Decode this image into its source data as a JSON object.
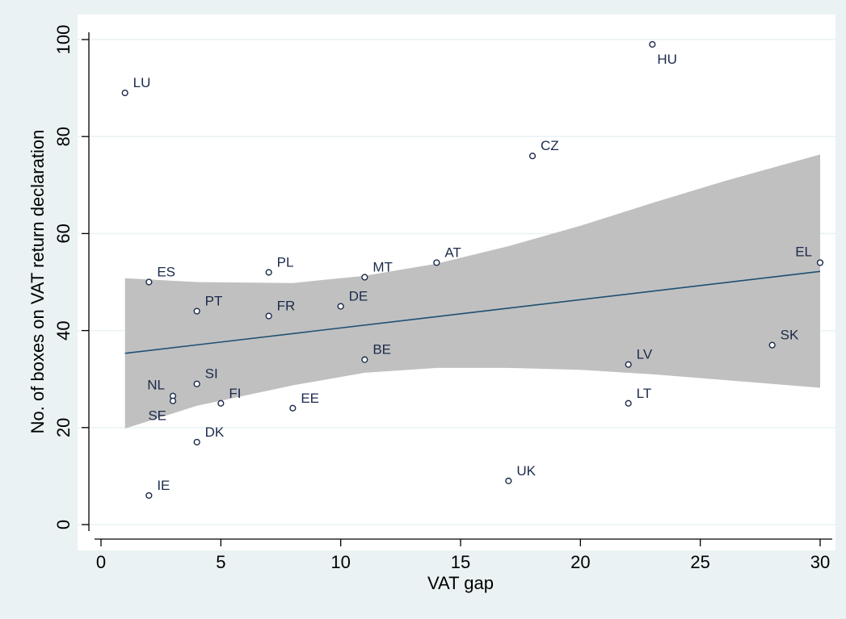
{
  "chart_data": {
    "type": "scatter",
    "title": "",
    "xlabel": "VAT gap",
    "ylabel": "No. of boxes on VAT return declaration",
    "xlim": [
      0,
      30
    ],
    "ylim": [
      0,
      100
    ],
    "x_ticks": [
      "0",
      "5",
      "10",
      "15",
      "20",
      "25",
      "30"
    ],
    "y_ticks": [
      "0",
      "20",
      "40",
      "60",
      "80",
      "100"
    ],
    "grid": "horizontal",
    "legend": "none",
    "points": [
      {
        "label": "LU",
        "x": 1,
        "y": 89,
        "label_pos": "right"
      },
      {
        "label": "HU",
        "x": 23,
        "y": 99,
        "label_pos": "below-right"
      },
      {
        "label": "CZ",
        "x": 18,
        "y": 76,
        "label_pos": "right"
      },
      {
        "label": "ES",
        "x": 2,
        "y": 50,
        "label_pos": "right"
      },
      {
        "label": "PL",
        "x": 7,
        "y": 52,
        "label_pos": "right"
      },
      {
        "label": "MT",
        "x": 11,
        "y": 51,
        "label_pos": "right"
      },
      {
        "label": "AT",
        "x": 14,
        "y": 54,
        "label_pos": "right"
      },
      {
        "label": "EL",
        "x": 30,
        "y": 54,
        "label_pos": "left"
      },
      {
        "label": "PT",
        "x": 4,
        "y": 44,
        "label_pos": "right"
      },
      {
        "label": "FR",
        "x": 7,
        "y": 43,
        "label_pos": "right"
      },
      {
        "label": "DE",
        "x": 10,
        "y": 45,
        "label_pos": "right"
      },
      {
        "label": "SK",
        "x": 28,
        "y": 37,
        "label_pos": "right"
      },
      {
        "label": "BE",
        "x": 11,
        "y": 34,
        "label_pos": "right"
      },
      {
        "label": "LV",
        "x": 22,
        "y": 33,
        "label_pos": "right"
      },
      {
        "label": "SI",
        "x": 4,
        "y": 29,
        "label_pos": "right"
      },
      {
        "label": "NL",
        "x": 3,
        "y": 26.5,
        "label_pos": "left"
      },
      {
        "label": "SE",
        "x": 3,
        "y": 25.5,
        "label_pos": "below-left"
      },
      {
        "label": "FI",
        "x": 5,
        "y": 25,
        "label_pos": "right"
      },
      {
        "label": "EE",
        "x": 8,
        "y": 24,
        "label_pos": "right"
      },
      {
        "label": "LT",
        "x": 22,
        "y": 25,
        "label_pos": "right"
      },
      {
        "label": "DK",
        "x": 4,
        "y": 17,
        "label_pos": "right"
      },
      {
        "label": "IE",
        "x": 2,
        "y": 6,
        "label_pos": "right"
      },
      {
        "label": "UK",
        "x": 17,
        "y": 9,
        "label_pos": "right"
      }
    ],
    "fit_line": {
      "x": [
        1,
        30
      ],
      "y": [
        35.3,
        52.2
      ]
    },
    "confidence_band": {
      "x": [
        1,
        4,
        8,
        11,
        14,
        17,
        20,
        23,
        26,
        30
      ],
      "upper": [
        50.8,
        50.0,
        49.8,
        51.3,
        53.8,
        57.4,
        61.6,
        66.3,
        70.8,
        76.3
      ],
      "lower": [
        19.8,
        24.5,
        28.7,
        31.3,
        32.3,
        32.3,
        31.9,
        31.0,
        29.8,
        28.2
      ]
    },
    "colors": {
      "background": "#eaf2f3",
      "plot_area": "#ffffff",
      "band": "#c0c0c0",
      "fit_line": "#1e4f73",
      "marker": "#1b2a4a",
      "label": "#1b2a4a"
    }
  }
}
